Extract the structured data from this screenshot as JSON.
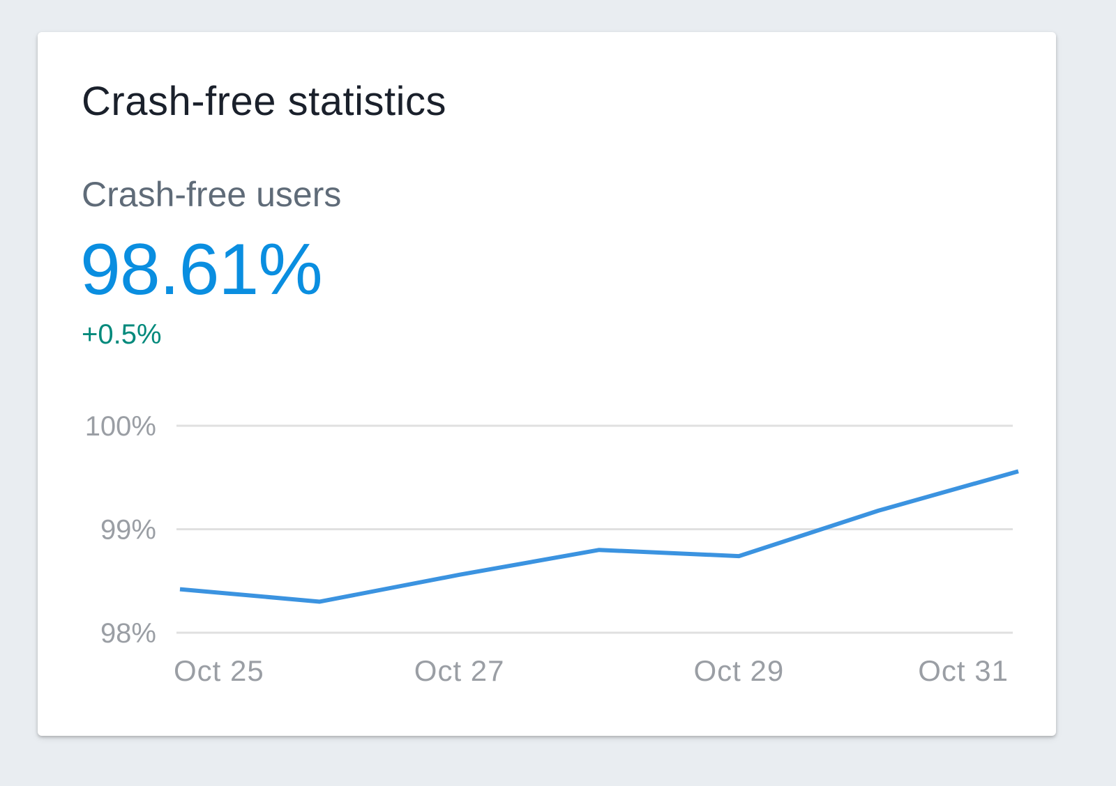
{
  "card": {
    "title": "Crash-free statistics",
    "metric_label": "Crash-free users",
    "metric_value": "98.61%",
    "metric_delta": "+0.5%"
  },
  "colors": {
    "background": "#e9edf1",
    "card": "#ffffff",
    "title": "#1a202b",
    "metric_label": "#5f6b78",
    "metric_value": "#0a8ee0",
    "metric_delta": "#00897b",
    "line": "#3b93e0",
    "gridline": "#e0e0e0",
    "tick_label": "#9a9ea4"
  },
  "chart_data": {
    "type": "line",
    "title": "",
    "xlabel": "",
    "ylabel": "",
    "x": [
      "Oct 25",
      "Oct 26",
      "Oct 27",
      "Oct 28",
      "Oct 29",
      "Oct 30",
      "Oct 31"
    ],
    "series": [
      {
        "values": [
          98.42,
          98.3,
          98.56,
          98.8,
          98.74,
          99.18,
          99.56
        ]
      }
    ],
    "ylim": [
      98,
      100
    ],
    "yticks": [
      {
        "value": 100,
        "label": "100%"
      },
      {
        "value": 99,
        "label": "99%"
      },
      {
        "value": 98,
        "label": "98%"
      }
    ],
    "xticks": [
      "Oct 25",
      "Oct 27",
      "Oct 29",
      "Oct 31"
    ],
    "grid": true,
    "legend": "none"
  }
}
